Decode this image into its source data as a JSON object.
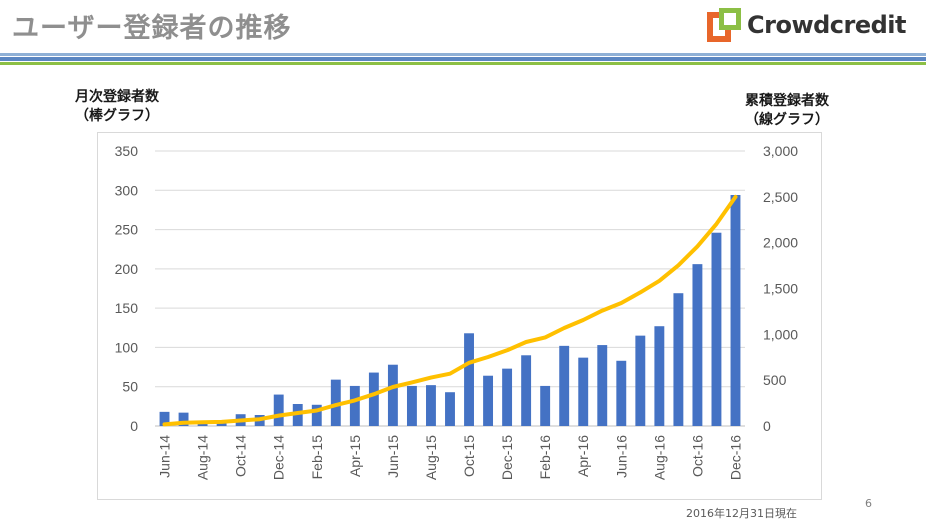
{
  "slide": {
    "title": "ユーザー登録者の推移",
    "logo_text": "Crowdcredit",
    "as_of": "2016年12月31日現在",
    "page_number": "6"
  },
  "colors": {
    "bar": "#4472c4",
    "line": "#ffc000",
    "logo_orange": "#e8662a",
    "logo_green": "#8cbf45"
  },
  "chart_data": {
    "type": "bar+line",
    "left_axis_title": [
      "月次登録者数",
      "（棒グラフ）"
    ],
    "right_axis_title": [
      "累積登録者数",
      "（線グラフ）"
    ],
    "left_ylim": [
      0,
      350
    ],
    "left_ticks": [
      "0",
      "50",
      "100",
      "150",
      "200",
      "250",
      "300",
      "350"
    ],
    "right_ylim": [
      0,
      3000
    ],
    "right_ticks": [
      "0",
      "500",
      "1,000",
      "1,500",
      "2,000",
      "2,500",
      "3,000"
    ],
    "categories": [
      "Jun-14",
      "Jul-14",
      "Aug-14",
      "Sep-14",
      "Oct-14",
      "Nov-14",
      "Dec-14",
      "Jan-15",
      "Feb-15",
      "Mar-15",
      "Apr-15",
      "May-15",
      "Jun-15",
      "Jul-15",
      "Aug-15",
      "Sep-15",
      "Oct-15",
      "Nov-15",
      "Dec-15",
      "Jan-16",
      "Feb-16",
      "Mar-16",
      "Apr-16",
      "May-16",
      "Jun-16",
      "Jul-16",
      "Aug-16",
      "Sep-16",
      "Oct-16",
      "Nov-16",
      "Dec-16"
    ],
    "x_tick_labels": [
      "Jun-14",
      "",
      "Aug-14",
      "",
      "Oct-14",
      "",
      "Dec-14",
      "",
      "Feb-15",
      "",
      "Apr-15",
      "",
      "Jun-15",
      "",
      "Aug-15",
      "",
      "Oct-15",
      "",
      "Dec-15",
      "",
      "Feb-16",
      "",
      "Apr-16",
      "",
      "Jun-16",
      "",
      "Aug-16",
      "",
      "Oct-16",
      "",
      "Dec-16"
    ],
    "series": [
      {
        "name": "月次登録者数",
        "kind": "bar",
        "axis": "left",
        "values": [
          18,
          17,
          5,
          5,
          15,
          14,
          40,
          28,
          27,
          59,
          51,
          68,
          78,
          51,
          52,
          43,
          118,
          64,
          73,
          90,
          51,
          102,
          87,
          103,
          83,
          115,
          127,
          169,
          206,
          246,
          294
        ]
      },
      {
        "name": "累積登録者数",
        "kind": "line",
        "axis": "right",
        "values": [
          18,
          35,
          40,
          45,
          60,
          74,
          114,
          142,
          169,
          228,
          279,
          347,
          425,
          476,
          528,
          571,
          689,
          753,
          826,
          916,
          967,
          1069,
          1156,
          1259,
          1342,
          1457,
          1584,
          1753,
          1959,
          2205,
          2499
        ]
      }
    ]
  }
}
